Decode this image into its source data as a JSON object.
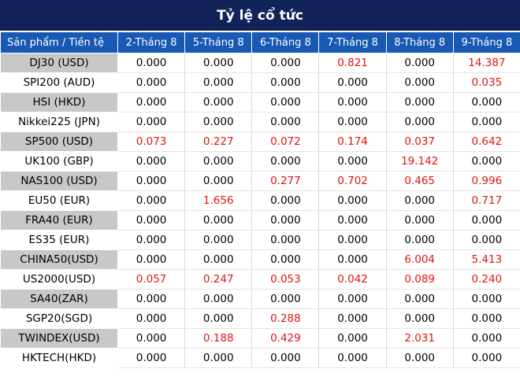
{
  "title": "Tỷ lệ cổ tức",
  "columns": [
    "Sản phẩm / Tiền tệ",
    "2-Tháng 8",
    "5-Tháng 8",
    "6-Tháng 8",
    "7-Tháng 8",
    "8-Tháng 8",
    "9-Tháng 8"
  ],
  "highlight_color": "#e0140f",
  "header_color": "#12235a",
  "column_header_color": "#1859b3",
  "rows": [
    {
      "name": "DJ30 (USD)",
      "values": [
        "0.000",
        "0.000",
        "0.000",
        "0.821",
        "0.000",
        "14.387"
      ]
    },
    {
      "name": "SPI200 (AUD)",
      "values": [
        "0.000",
        "0.000",
        "0.000",
        "0.000",
        "0.000",
        "0.035"
      ]
    },
    {
      "name": "HSI (HKD)",
      "values": [
        "0.000",
        "0.000",
        "0.000",
        "0.000",
        "0.000",
        "0.000"
      ]
    },
    {
      "name": "Nikkei225 (JPN)",
      "values": [
        "0.000",
        "0.000",
        "0.000",
        "0.000",
        "0.000",
        "0.000"
      ]
    },
    {
      "name": "SP500 (USD)",
      "values": [
        "0.073",
        "0.227",
        "0.072",
        "0.174",
        "0.037",
        "0.642"
      ]
    },
    {
      "name": "UK100 (GBP)",
      "values": [
        "0.000",
        "0.000",
        "0.000",
        "0.000",
        "19.142",
        "0.000"
      ]
    },
    {
      "name": "NAS100 (USD)",
      "values": [
        "0.000",
        "0.000",
        "0.277",
        "0.702",
        "0.465",
        "0.996"
      ]
    },
    {
      "name": "EU50 (EUR)",
      "values": [
        "0.000",
        "1.656",
        "0.000",
        "0.000",
        "0.000",
        "0.717"
      ]
    },
    {
      "name": "FRA40 (EUR)",
      "values": [
        "0.000",
        "0.000",
        "0.000",
        "0.000",
        "0.000",
        "0.000"
      ]
    },
    {
      "name": "ES35 (EUR)",
      "values": [
        "0.000",
        "0.000",
        "0.000",
        "0.000",
        "0.000",
        "0.000"
      ]
    },
    {
      "name": "CHINA50(USD)",
      "values": [
        "0.000",
        "0.000",
        "0.000",
        "0.000",
        "6.004",
        "5.413"
      ]
    },
    {
      "name": "US2000(USD)",
      "values": [
        "0.057",
        "0.247",
        "0.053",
        "0.042",
        "0.089",
        "0.240"
      ]
    },
    {
      "name": "SA40(ZAR)",
      "values": [
        "0.000",
        "0.000",
        "0.000",
        "0.000",
        "0.000",
        "0.000"
      ]
    },
    {
      "name": "SGP20(SGD)",
      "values": [
        "0.000",
        "0.000",
        "0.288",
        "0.000",
        "0.000",
        "0.000"
      ]
    },
    {
      "name": "TWINDEX(USD)",
      "values": [
        "0.000",
        "0.188",
        "0.429",
        "0.000",
        "2.031",
        "0.000"
      ]
    },
    {
      "name": "HKTECH(HKD)",
      "values": [
        "0.000",
        "0.000",
        "0.000",
        "0.000",
        "0.000",
        "0.000"
      ]
    }
  ]
}
